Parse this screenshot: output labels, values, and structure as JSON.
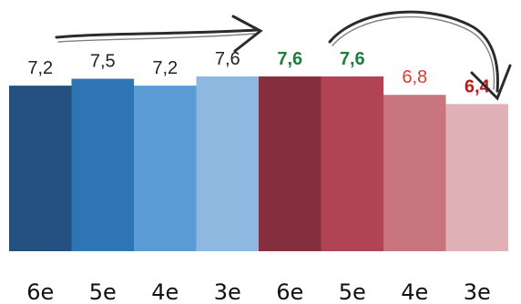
{
  "chart_data": {
    "type": "bar",
    "categories": [
      "6e",
      "5e",
      "4e",
      "3e",
      "6e",
      "5e",
      "4e",
      "3e"
    ],
    "values": [
      7.2,
      7.5,
      7.2,
      7.6,
      7.6,
      7.6,
      6.8,
      6.4
    ],
    "value_labels": [
      "7,2",
      "7,5",
      "7,2",
      "7,6",
      "7,6",
      "7,6",
      "6,8",
      "6,4"
    ],
    "bar_colors": [
      "#23507f",
      "#2e75b6",
      "#5b9bd5",
      "#8fb8e0",
      "#862f3e",
      "#b04454",
      "#c87580",
      "#e0b2b8"
    ],
    "label_colors": [
      "#222222",
      "#222222",
      "#222222",
      "#222222",
      "#1e7f3b",
      "#1e7f3b",
      "#e03a2e",
      "#c01818"
    ],
    "label_bold": [
      false,
      false,
      false,
      false,
      true,
      true,
      false,
      true
    ],
    "ylim": [
      0,
      7.6
    ],
    "grid": false,
    "annotations": [
      "arrow-right",
      "arrow-curved-down"
    ]
  }
}
